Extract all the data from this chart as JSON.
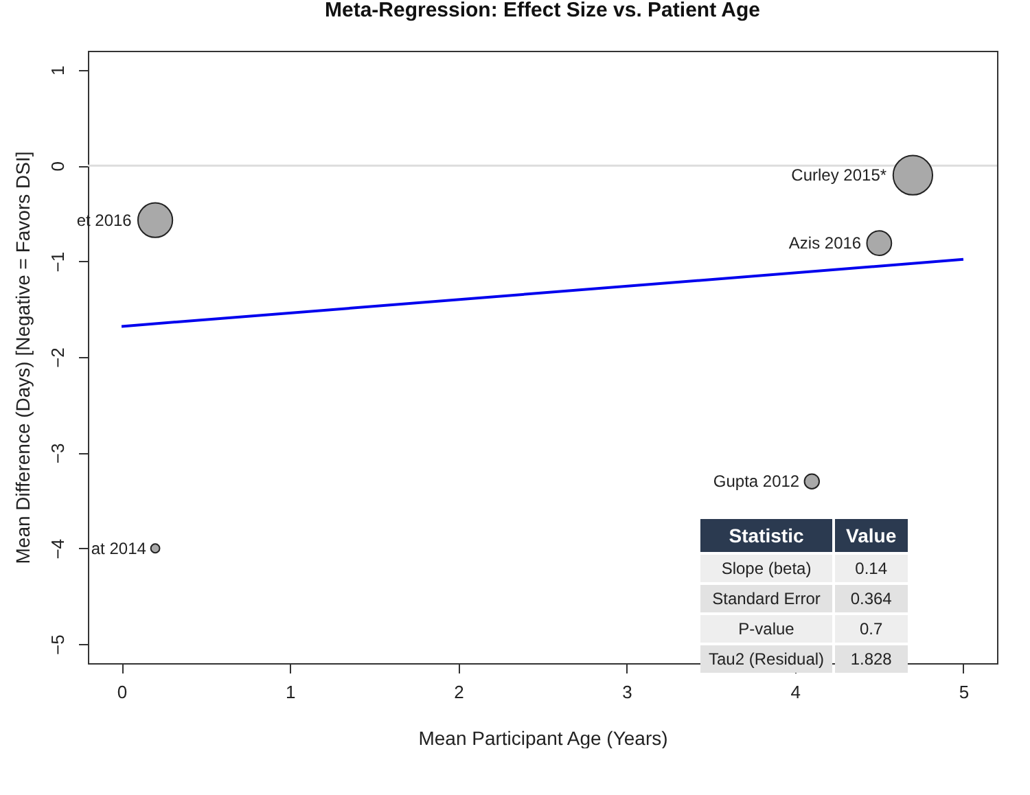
{
  "chart_data": {
    "type": "bubble",
    "title": "Meta-Regression: Effect Size vs. Patient Age",
    "xlabel": "Mean Participant Age (Years)",
    "ylabel": "Mean Difference (Days) [Negative = Favors DSI]",
    "xlim": [
      -0.2,
      5.2
    ],
    "xticks": [
      0,
      1,
      2,
      3,
      4,
      5
    ],
    "ylim": [
      -5.2,
      1.2
    ],
    "yticks": [
      -5,
      -4,
      -3,
      -2,
      -1,
      0,
      1
    ],
    "grid": false,
    "series": [
      {
        "color": "#a9a9a9",
        "x": [
          0.2,
          0.2,
          4.7,
          4.5,
          4.1
        ],
        "values": [
          -0.57,
          -4.0,
          -0.1,
          -0.81,
          -3.3
        ],
        "sizes": [
          0.77,
          0.05,
          1,
          0.39,
          0.14
        ]
      },
      {
        "type": "line",
        "color": "#0000ee",
        "x": [
          0,
          5
        ],
        "values": [
          -1.68,
          -0.98
        ]
      }
    ],
    "ref_lines": [
      {
        "axis": "y",
        "value": 0,
        "color": "#dddddd"
      }
    ],
    "annotations": [
      {
        "text": "et 2016",
        "x": 0.2,
        "y": -0.57
      },
      {
        "text": "at 2014",
        "x": 0.2,
        "y": -4.0
      },
      {
        "text": "Curley 2015*",
        "x": 4.7,
        "y": -0.1
      },
      {
        "text": "Azis 2016",
        "x": 4.5,
        "y": -0.81
      },
      {
        "text": "Gupta 2012",
        "x": 4.1,
        "y": -3.3
      },
      "Statistic",
      "Value",
      "Slope (beta)",
      "0.14",
      "Standard Error",
      "0.364",
      "P-value",
      "0.7",
      "Tau2 (Residual)",
      "1.828"
    ]
  }
}
